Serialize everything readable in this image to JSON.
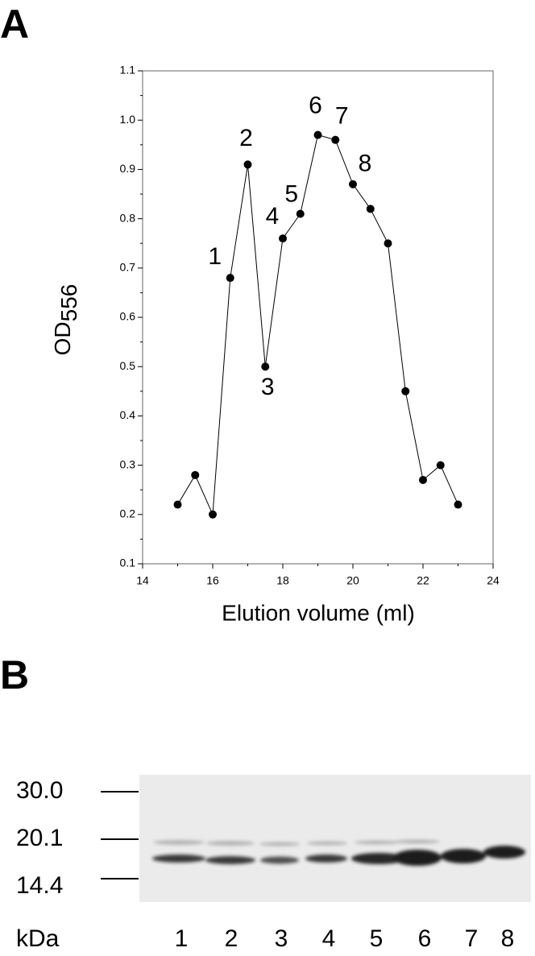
{
  "panels": {
    "a": "A",
    "b": "B"
  },
  "chart_data": {
    "type": "line",
    "xlabel": "Elution volume (ml)",
    "ylabel": "OD",
    "ylabel_subscript": "556",
    "x": [
      15,
      15.5,
      16,
      16.5,
      17,
      17.5,
      18,
      18.5,
      19,
      19.5,
      20,
      20.5,
      21,
      21.5,
      22,
      22.5,
      23
    ],
    "values": [
      0.22,
      0.28,
      0.2,
      0.68,
      0.91,
      0.5,
      0.76,
      0.81,
      0.97,
      0.96,
      0.87,
      0.82,
      0.75,
      0.45,
      0.27,
      0.3,
      0.22
    ],
    "point_labels": [
      null,
      null,
      null,
      "1",
      "2",
      "3",
      "4",
      "5",
      "6",
      "7",
      "8",
      null,
      null,
      null,
      null,
      null,
      null
    ],
    "color": "#000000",
    "xlim": [
      14,
      24
    ],
    "xticks": [
      14,
      16,
      18,
      20,
      22,
      24
    ],
    "xminor_ticks": [
      15,
      17,
      19,
      21,
      23
    ],
    "ylim": [
      0.1,
      1.1
    ],
    "yticks": [
      0.1,
      0.2,
      0.3,
      0.4,
      0.5,
      0.6,
      0.7,
      0.8,
      0.9,
      {
        "value": 1,
        "label": "1.0"
      },
      1.1
    ],
    "yminor_ticks": [
      0.15,
      0.25,
      0.35,
      0.45,
      0.55,
      0.65,
      0.75,
      0.85,
      0.95,
      1.05
    ]
  },
  "gel": {
    "markers": [
      "30.0",
      "20.1",
      "14.4"
    ],
    "unit": "kDa",
    "lanes": [
      "1",
      "2",
      "3",
      "4",
      "5",
      "6",
      "7",
      "8"
    ]
  }
}
